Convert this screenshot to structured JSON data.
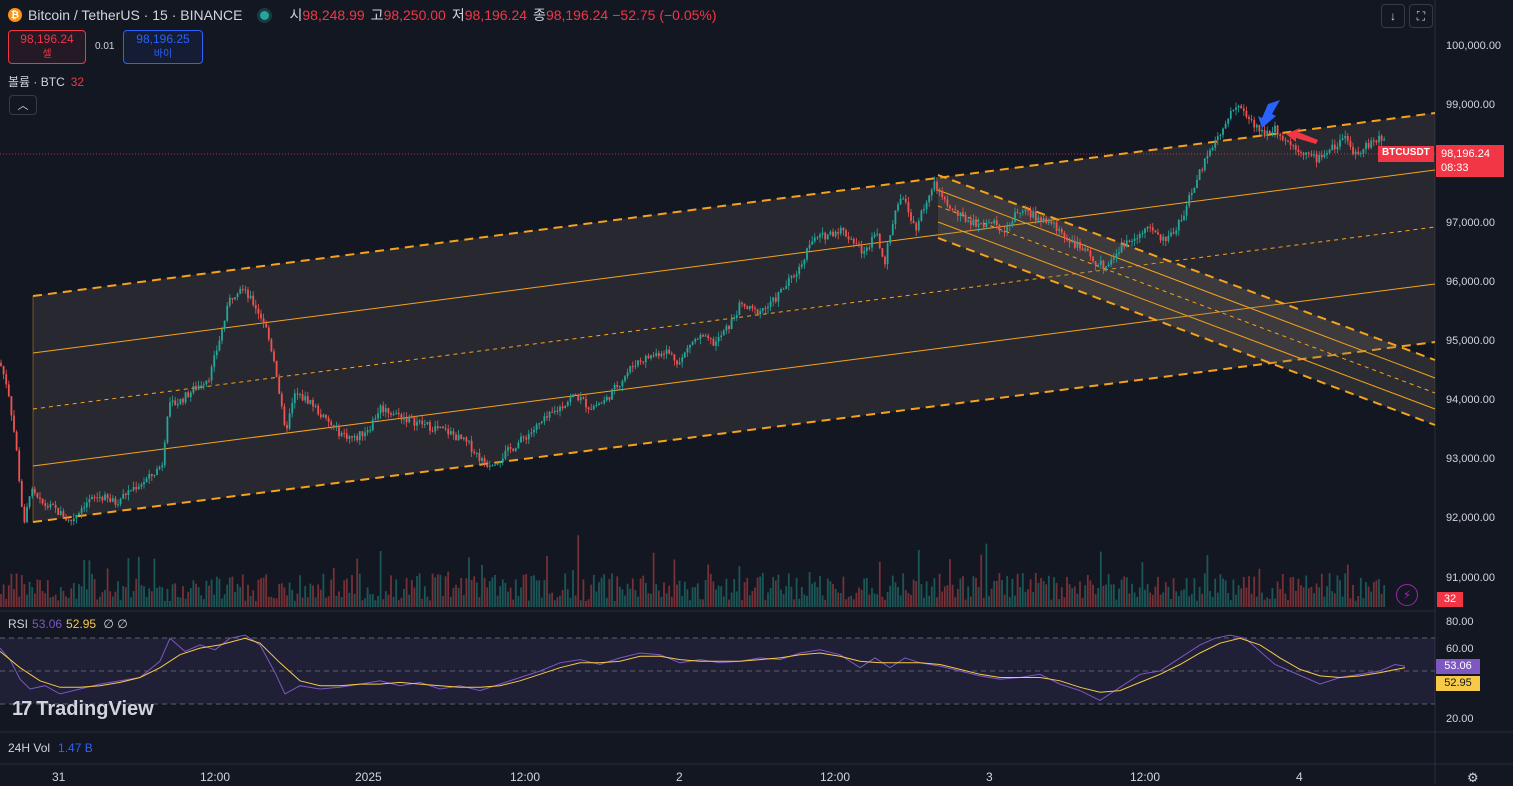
{
  "header": {
    "coin_glyph": "₿",
    "symbol": "Bitcoin / TetherUS · 15 · BINANCE",
    "open_label": "시",
    "open": "98,248.99",
    "high_label": "고",
    "high": "98,250.00",
    "low_label": "저",
    "low": "98,196.24",
    "close_label": "종",
    "close": "98,196.24",
    "change": "−52.75 (−0.05%)"
  },
  "trade": {
    "sell_price": "98,196.24",
    "sell_label": "셀",
    "spread": "0.01",
    "buy_price": "98,196.25",
    "buy_label": "바이"
  },
  "volume": {
    "label": "볼륨 · BTC",
    "value": "32",
    "tag": "32"
  },
  "top_right": {
    "scroll_icon": "↓",
    "fullscreen_icon": "⛶"
  },
  "price_axis": [
    "100,000.00",
    "99,000.00",
    "97,000.00",
    "96,000.00",
    "95,000.00",
    "94,000.00",
    "93,000.00",
    "92,000.00",
    "91,000.00"
  ],
  "last_price": {
    "symbol": "BTCUSDT",
    "price": "98,196.24",
    "countdown": "08:33"
  },
  "time_axis": [
    "31",
    "12:00",
    "2025",
    "12:00",
    "2",
    "12:00",
    "3",
    "12:00",
    "4"
  ],
  "rsi": {
    "label": "RSI",
    "value": "53.06",
    "ma": "52.95",
    "extra": "∅ ∅",
    "axis": [
      "80.00",
      "60.00",
      "20.00"
    ]
  },
  "vol24": {
    "label": "24H Vol",
    "value": "1.47 B"
  },
  "logo": {
    "mark": "17",
    "text": "TradingView"
  },
  "colors": {
    "up": "#26a69a",
    "down": "#ef5350",
    "channel": "#f7a21b",
    "rsi": "#7e57c2",
    "rsi_ma": "#f7c948"
  },
  "chart_data": {
    "type": "candlestick",
    "ylim": [
      90800,
      100400
    ],
    "close_path": [
      [
        0,
        94700
      ],
      [
        8,
        94300
      ],
      [
        16,
        93400
      ],
      [
        24,
        92100
      ],
      [
        30,
        92700
      ],
      [
        40,
        92500
      ],
      [
        55,
        92400
      ],
      [
        70,
        92200
      ],
      [
        85,
        92500
      ],
      [
        100,
        92600
      ],
      [
        115,
        92500
      ],
      [
        130,
        92700
      ],
      [
        150,
        92900
      ],
      [
        162,
        93100
      ],
      [
        168,
        94000
      ],
      [
        180,
        94100
      ],
      [
        195,
        94300
      ],
      [
        210,
        94500
      ],
      [
        220,
        95100
      ],
      [
        230,
        95700
      ],
      [
        240,
        95900
      ],
      [
        255,
        95600
      ],
      [
        265,
        95300
      ],
      [
        275,
        94700
      ],
      [
        285,
        93600
      ],
      [
        295,
        94200
      ],
      [
        310,
        94100
      ],
      [
        325,
        93800
      ],
      [
        340,
        93600
      ],
      [
        355,
        93500
      ],
      [
        370,
        93700
      ],
      [
        380,
        94000
      ],
      [
        395,
        93900
      ],
      [
        410,
        93800
      ],
      [
        430,
        93700
      ],
      [
        450,
        93600
      ],
      [
        470,
        93400
      ],
      [
        485,
        93100
      ],
      [
        500,
        93200
      ],
      [
        515,
        93400
      ],
      [
        530,
        93600
      ],
      [
        545,
        93800
      ],
      [
        560,
        94000
      ],
      [
        575,
        94200
      ],
      [
        590,
        94000
      ],
      [
        605,
        94100
      ],
      [
        620,
        94400
      ],
      [
        635,
        94700
      ],
      [
        650,
        94800
      ],
      [
        665,
        94900
      ],
      [
        680,
        94700
      ],
      [
        690,
        95000
      ],
      [
        700,
        95100
      ],
      [
        715,
        95000
      ],
      [
        730,
        95300
      ],
      [
        740,
        95600
      ],
      [
        755,
        95500
      ],
      [
        770,
        95600
      ],
      [
        785,
        95900
      ],
      [
        800,
        96200
      ],
      [
        810,
        96600
      ],
      [
        825,
        96700
      ],
      [
        840,
        96800
      ],
      [
        855,
        96600
      ],
      [
        865,
        96400
      ],
      [
        875,
        96800
      ],
      [
        885,
        96300
      ],
      [
        895,
        97100
      ],
      [
        905,
        97300
      ],
      [
        915,
        96800
      ],
      [
        925,
        97200
      ],
      [
        935,
        97500
      ],
      [
        945,
        97200
      ],
      [
        960,
        97000
      ],
      [
        975,
        96900
      ],
      [
        990,
        96900
      ],
      [
        1005,
        96800
      ],
      [
        1020,
        97100
      ],
      [
        1035,
        97000
      ],
      [
        1050,
        96900
      ],
      [
        1065,
        96700
      ],
      [
        1080,
        96500
      ],
      [
        1095,
        96300
      ],
      [
        1105,
        96200
      ],
      [
        1120,
        96500
      ],
      [
        1135,
        96700
      ],
      [
        1150,
        96800
      ],
      [
        1165,
        96600
      ],
      [
        1175,
        96800
      ],
      [
        1185,
        97100
      ],
      [
        1195,
        97500
      ],
      [
        1205,
        97900
      ],
      [
        1215,
        98200
      ],
      [
        1225,
        98400
      ],
      [
        1235,
        98800
      ],
      [
        1245,
        98600
      ],
      [
        1255,
        98400
      ],
      [
        1265,
        98300
      ],
      [
        1275,
        98400
      ],
      [
        1285,
        98200
      ],
      [
        1295,
        98100
      ],
      [
        1305,
        98000
      ],
      [
        1315,
        97900
      ],
      [
        1325,
        98000
      ],
      [
        1335,
        98100
      ],
      [
        1345,
        98200
      ],
      [
        1355,
        98000
      ],
      [
        1365,
        98100
      ],
      [
        1375,
        98200
      ],
      [
        1385,
        98200
      ]
    ],
    "rsi_path": [
      [
        0,
        64
      ],
      [
        10,
        57
      ],
      [
        20,
        45
      ],
      [
        30,
        39
      ],
      [
        45,
        41
      ],
      [
        60,
        36
      ],
      [
        80,
        39
      ],
      [
        100,
        42
      ],
      [
        120,
        44
      ],
      [
        140,
        46
      ],
      [
        160,
        56
      ],
      [
        170,
        70
      ],
      [
        185,
        62
      ],
      [
        200,
        66
      ],
      [
        215,
        63
      ],
      [
        230,
        70
      ],
      [
        245,
        72
      ],
      [
        260,
        66
      ],
      [
        275,
        49
      ],
      [
        285,
        36
      ],
      [
        300,
        41
      ],
      [
        320,
        39
      ],
      [
        340,
        40
      ],
      [
        360,
        42
      ],
      [
        380,
        44
      ],
      [
        400,
        41
      ],
      [
        420,
        43
      ],
      [
        440,
        39
      ],
      [
        460,
        41
      ],
      [
        480,
        38
      ],
      [
        500,
        42
      ],
      [
        520,
        46
      ],
      [
        540,
        50
      ],
      [
        560,
        55
      ],
      [
        580,
        57
      ],
      [
        600,
        54
      ],
      [
        620,
        58
      ],
      [
        640,
        61
      ],
      [
        660,
        60
      ],
      [
        680,
        55
      ],
      [
        700,
        57
      ],
      [
        720,
        55
      ],
      [
        740,
        56
      ],
      [
        760,
        58
      ],
      [
        780,
        57
      ],
      [
        800,
        61
      ],
      [
        820,
        63
      ],
      [
        840,
        60
      ],
      [
        860,
        52
      ],
      [
        875,
        58
      ],
      [
        890,
        52
      ],
      [
        905,
        58
      ],
      [
        920,
        55
      ],
      [
        940,
        53
      ],
      [
        960,
        50
      ],
      [
        980,
        47
      ],
      [
        1000,
        45
      ],
      [
        1020,
        46
      ],
      [
        1040,
        48
      ],
      [
        1060,
        42
      ],
      [
        1080,
        38
      ],
      [
        1100,
        32
      ],
      [
        1120,
        40
      ],
      [
        1140,
        48
      ],
      [
        1160,
        50
      ],
      [
        1180,
        58
      ],
      [
        1200,
        66
      ],
      [
        1215,
        70
      ],
      [
        1230,
        72
      ],
      [
        1245,
        70
      ],
      [
        1260,
        62
      ],
      [
        1275,
        54
      ],
      [
        1290,
        50
      ],
      [
        1305,
        46
      ],
      [
        1320,
        42
      ],
      [
        1340,
        46
      ],
      [
        1360,
        48
      ],
      [
        1380,
        50
      ],
      [
        1395,
        54
      ],
      [
        1405,
        53
      ]
    ],
    "rsi_ma_path": [
      [
        0,
        62
      ],
      [
        20,
        52
      ],
      [
        40,
        44
      ],
      [
        60,
        40
      ],
      [
        80,
        40
      ],
      [
        100,
        41
      ],
      [
        120,
        43
      ],
      [
        140,
        46
      ],
      [
        160,
        52
      ],
      [
        180,
        60
      ],
      [
        200,
        64
      ],
      [
        220,
        66
      ],
      [
        245,
        70
      ],
      [
        260,
        67
      ],
      [
        280,
        55
      ],
      [
        300,
        44
      ],
      [
        320,
        41
      ],
      [
        340,
        41
      ],
      [
        360,
        42
      ],
      [
        380,
        42
      ],
      [
        400,
        43
      ],
      [
        420,
        42
      ],
      [
        440,
        41
      ],
      [
        460,
        40
      ],
      [
        480,
        40
      ],
      [
        500,
        41
      ],
      [
        520,
        44
      ],
      [
        540,
        48
      ],
      [
        560,
        52
      ],
      [
        580,
        55
      ],
      [
        600,
        55
      ],
      [
        620,
        56
      ],
      [
        640,
        59
      ],
      [
        660,
        59
      ],
      [
        680,
        57
      ],
      [
        700,
        56
      ],
      [
        720,
        56
      ],
      [
        740,
        56
      ],
      [
        760,
        57
      ],
      [
        780,
        58
      ],
      [
        800,
        60
      ],
      [
        820,
        61
      ],
      [
        840,
        59
      ],
      [
        860,
        56
      ],
      [
        880,
        55
      ],
      [
        900,
        55
      ],
      [
        920,
        55
      ],
      [
        940,
        54
      ],
      [
        960,
        51
      ],
      [
        980,
        48
      ],
      [
        1000,
        46
      ],
      [
        1020,
        46
      ],
      [
        1040,
        46
      ],
      [
        1060,
        44
      ],
      [
        1080,
        40
      ],
      [
        1100,
        37
      ],
      [
        1120,
        38
      ],
      [
        1140,
        43
      ],
      [
        1160,
        48
      ],
      [
        1180,
        54
      ],
      [
        1200,
        61
      ],
      [
        1220,
        67
      ],
      [
        1240,
        70
      ],
      [
        1260,
        66
      ],
      [
        1280,
        58
      ],
      [
        1300,
        51
      ],
      [
        1320,
        47
      ],
      [
        1340,
        46
      ],
      [
        1360,
        47
      ],
      [
        1380,
        49
      ],
      [
        1405,
        52
      ]
    ]
  }
}
